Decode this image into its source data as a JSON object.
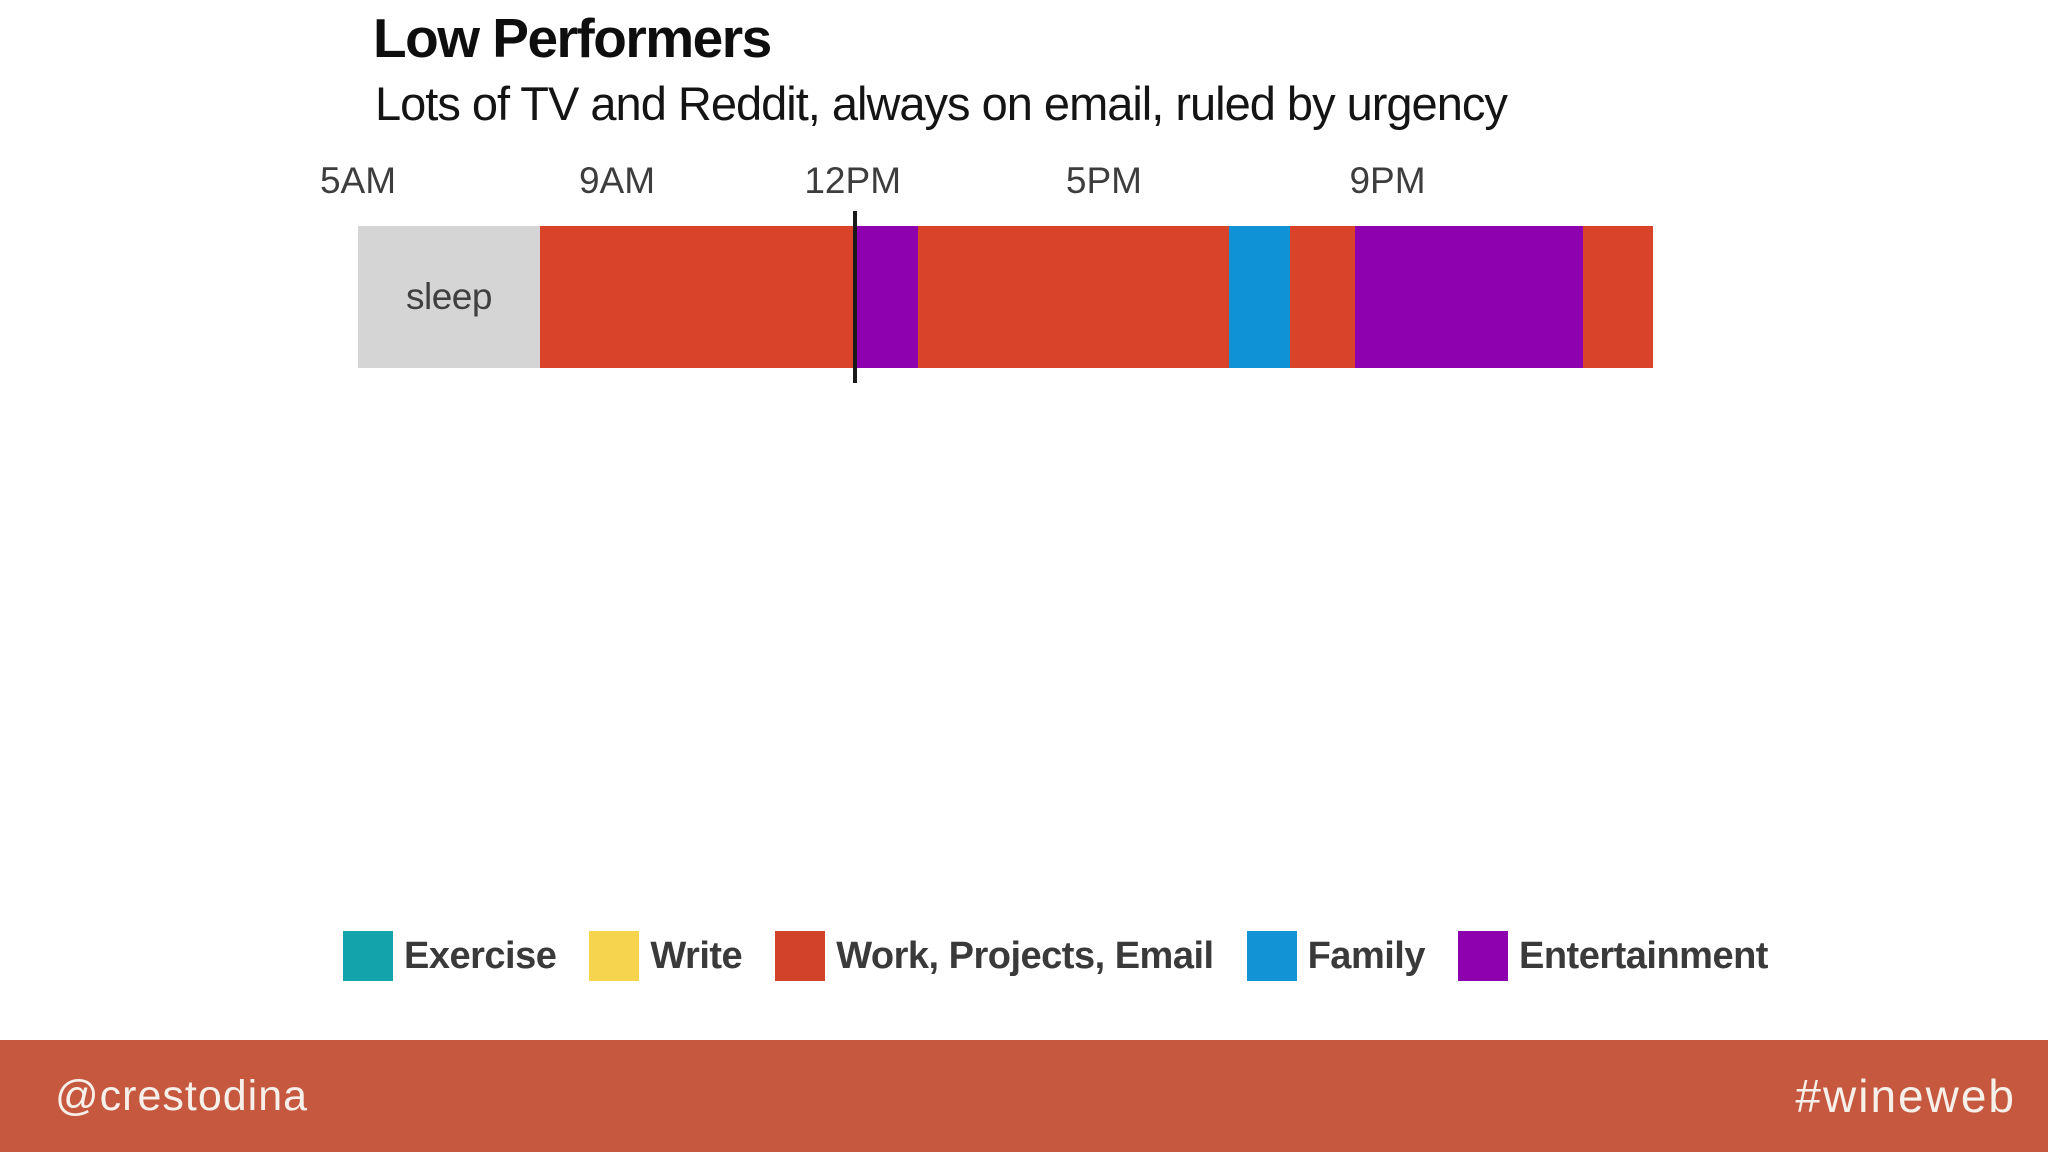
{
  "page": {
    "background": "#ffffff"
  },
  "header": {
    "title": "Low Performers",
    "subtitle": "Lots of TV and Reddit, always on email, ruled by urgency"
  },
  "chart_data": {
    "type": "bar",
    "variant": "single-row horizontal daily-schedule timeline (stacked segments, 5AM to past midnight)",
    "title": "Low Performers",
    "subtitle": "Lots of TV and Reddit, always on email, ruled by urgency",
    "axis": {
      "ticks": [
        {
          "label": "5AM",
          "position_pct": 0
        },
        {
          "label": "9AM",
          "position_pct": 20.0
        },
        {
          "label": "12PM",
          "position_pct": 38.2
        },
        {
          "label": "5PM",
          "position_pct": 57.6
        },
        {
          "label": "9PM",
          "position_pct": 79.5
        }
      ]
    },
    "segments": [
      {
        "activity": "Sleep",
        "label": "sleep",
        "color": "#d5d5d5",
        "width_pct": 14.05
      },
      {
        "activity": "Work, Projects, Email",
        "label": "",
        "color": "#d8432a",
        "width_pct": 24.48
      },
      {
        "activity": "Entertainment",
        "label": "",
        "color": "#8e01ae",
        "width_pct": 4.71
      },
      {
        "activity": "Work, Projects, Email",
        "label": "",
        "color": "#d8432a",
        "width_pct": 24.02
      },
      {
        "activity": "Family",
        "label": "",
        "color": "#0f93d6",
        "width_pct": 4.71
      },
      {
        "activity": "Work, Projects, Email",
        "label": "",
        "color": "#d8432a",
        "width_pct": 5.02
      },
      {
        "activity": "Entertainment",
        "label": "",
        "color": "#8e01ae",
        "width_pct": 17.61
      },
      {
        "activity": "Work, Projects, Email",
        "label": "",
        "color": "#d8432a",
        "width_pct": 5.4
      }
    ],
    "noon_marker": {
      "position_pct": 38.4,
      "color": "#1a1a1a"
    },
    "legend": {
      "position": "bottom",
      "items": [
        {
          "label": "Exercise",
          "color": "#12a3ab"
        },
        {
          "label": "Write",
          "color": "#f7d44e"
        },
        {
          "label": "Work, Projects, Email",
          "color": "#d2422a"
        },
        {
          "label": "Family",
          "color": "#1193d6"
        },
        {
          "label": "Entertainment",
          "color": "#8d01ae"
        }
      ]
    }
  },
  "footer": {
    "handle": "@crestodina",
    "hashtag": "#wineweb",
    "background": "#c5583e"
  }
}
